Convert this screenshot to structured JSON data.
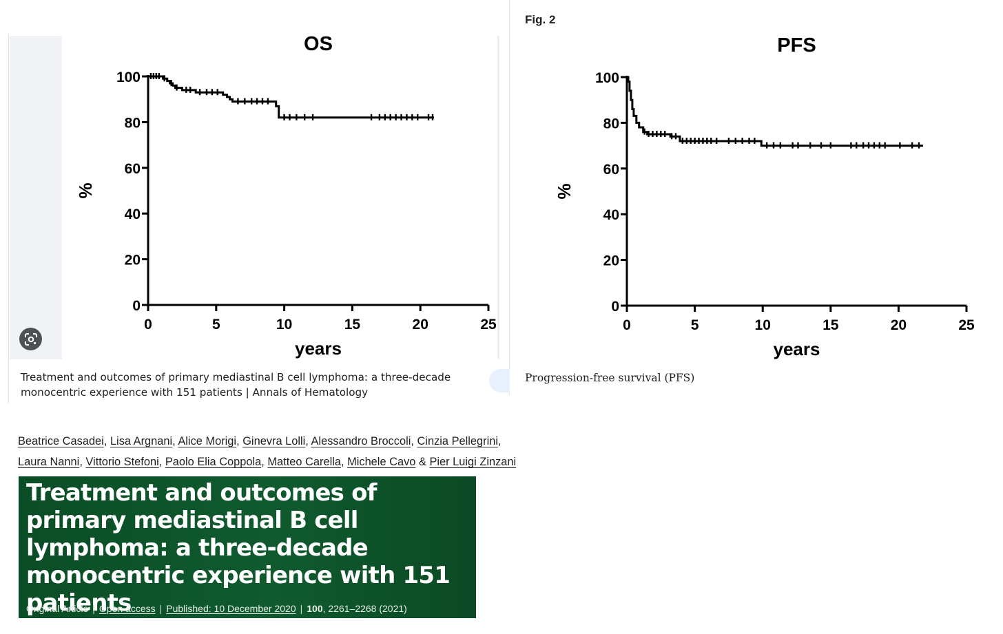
{
  "chart_data": [
    {
      "type": "line",
      "title": "OS",
      "xlabel": "years",
      "ylabel": "%",
      "xlim": [
        0,
        25
      ],
      "ylim": [
        0,
        100
      ],
      "xticks": [
        0,
        5,
        10,
        15,
        20,
        25
      ],
      "yticks": [
        0,
        20,
        40,
        60,
        80,
        100
      ],
      "step": true,
      "curve": [
        [
          0,
          100
        ],
        [
          0.9,
          100
        ],
        [
          1.1,
          99
        ],
        [
          1.4,
          98
        ],
        [
          1.6,
          97
        ],
        [
          1.8,
          96
        ],
        [
          2.0,
          95
        ],
        [
          2.2,
          95
        ],
        [
          2.5,
          94
        ],
        [
          3.4,
          94
        ],
        [
          3.5,
          93
        ],
        [
          5.3,
          93
        ],
        [
          5.5,
          92
        ],
        [
          5.8,
          91
        ],
        [
          6.0,
          90
        ],
        [
          6.2,
          89
        ],
        [
          9.2,
          89
        ],
        [
          9.4,
          87
        ],
        [
          9.6,
          82
        ],
        [
          21.0,
          82
        ]
      ],
      "censored": [
        [
          0.2,
          100
        ],
        [
          0.4,
          100
        ],
        [
          0.6,
          100
        ],
        [
          0.8,
          100
        ],
        [
          1.2,
          99
        ],
        [
          1.7,
          97
        ],
        [
          2.1,
          95
        ],
        [
          2.8,
          94
        ],
        [
          3.1,
          94
        ],
        [
          3.8,
          93
        ],
        [
          4.3,
          93
        ],
        [
          4.7,
          93
        ],
        [
          5.1,
          93
        ],
        [
          6.6,
          89
        ],
        [
          7.1,
          89
        ],
        [
          7.6,
          89
        ],
        [
          8.0,
          89
        ],
        [
          8.4,
          89
        ],
        [
          8.8,
          89
        ],
        [
          10.0,
          82
        ],
        [
          10.4,
          82
        ],
        [
          10.9,
          82
        ],
        [
          11.5,
          82
        ],
        [
          12.1,
          82
        ],
        [
          16.4,
          82
        ],
        [
          17.0,
          82
        ],
        [
          17.4,
          82
        ],
        [
          17.8,
          82
        ],
        [
          18.2,
          82
        ],
        [
          18.6,
          82
        ],
        [
          19.0,
          82
        ],
        [
          19.4,
          82
        ],
        [
          19.8,
          82
        ],
        [
          20.6,
          82
        ],
        [
          20.9,
          82
        ]
      ]
    },
    {
      "type": "line",
      "title": "PFS",
      "xlabel": "years",
      "ylabel": "%",
      "xlim": [
        0,
        25
      ],
      "ylim": [
        0,
        100
      ],
      "xticks": [
        0,
        5,
        10,
        15,
        20,
        25
      ],
      "yticks": [
        0,
        20,
        40,
        60,
        80,
        100
      ],
      "step": true,
      "curve": [
        [
          0,
          100
        ],
        [
          0.1,
          98
        ],
        [
          0.2,
          94
        ],
        [
          0.3,
          90
        ],
        [
          0.4,
          86
        ],
        [
          0.5,
          83
        ],
        [
          0.7,
          80
        ],
        [
          0.9,
          78
        ],
        [
          1.2,
          76
        ],
        [
          1.5,
          75
        ],
        [
          3.0,
          75
        ],
        [
          3.2,
          74
        ],
        [
          3.8,
          74
        ],
        [
          3.9,
          72
        ],
        [
          9.8,
          72
        ],
        [
          9.9,
          70
        ],
        [
          21.8,
          70
        ]
      ],
      "censored": [
        [
          1.3,
          76
        ],
        [
          1.6,
          75
        ],
        [
          1.9,
          75
        ],
        [
          2.2,
          75
        ],
        [
          2.5,
          75
        ],
        [
          2.8,
          75
        ],
        [
          3.3,
          74
        ],
        [
          3.6,
          74
        ],
        [
          4.1,
          72
        ],
        [
          4.4,
          72
        ],
        [
          4.7,
          72
        ],
        [
          5.0,
          72
        ],
        [
          5.3,
          72
        ],
        [
          5.6,
          72
        ],
        [
          5.9,
          72
        ],
        [
          6.2,
          72
        ],
        [
          6.6,
          72
        ],
        [
          7.5,
          72
        ],
        [
          8.0,
          72
        ],
        [
          8.5,
          72
        ],
        [
          9.0,
          72
        ],
        [
          9.4,
          72
        ],
        [
          10.3,
          70
        ],
        [
          10.8,
          70
        ],
        [
          11.3,
          70
        ],
        [
          12.2,
          70
        ],
        [
          12.6,
          70
        ],
        [
          13.5,
          70
        ],
        [
          14.3,
          70
        ],
        [
          15.0,
          70
        ],
        [
          16.5,
          70
        ],
        [
          16.9,
          70
        ],
        [
          17.4,
          70
        ],
        [
          17.8,
          70
        ],
        [
          18.2,
          70
        ],
        [
          18.6,
          70
        ],
        [
          19.0,
          70
        ],
        [
          20.1,
          70
        ],
        [
          21.0,
          70
        ],
        [
          21.5,
          70
        ]
      ]
    }
  ],
  "left_caption": "Treatment and outcomes of primary mediastinal B cell lymphoma: a three-decade monocentric experience with 151 patients | Annals of Hematology",
  "fig_label": "Fig. 2",
  "right_caption": "Progression-free survival (PFS)",
  "icons": {
    "lens": "google-lens-icon",
    "mail": "envelope-icon"
  },
  "authors": [
    "Beatrice Casadei",
    "Lisa Argnani",
    "Alice Morigi",
    "Ginevra Lolli",
    "Alessandro Broccoli",
    "Cinzia Pellegrini",
    "Laura Nanni",
    "Vittorio Stefoni",
    "Paolo Elia Coppola",
    "Matteo Carella",
    "Michele Cavo",
    "Pier Luigi Zinzani"
  ],
  "authors_joiner": "&",
  "article": {
    "title": "Treatment and outcomes of primary mediastinal B cell lymphoma: a three-decade monocentric experience with 151 patients",
    "type": "Original Article",
    "access": "Open access",
    "published": "Published: 10 December 2020",
    "volume": "100",
    "pages": ", 2261–2268 (2021)",
    "separator": "|",
    "banner_color": "#0e5a2c"
  }
}
